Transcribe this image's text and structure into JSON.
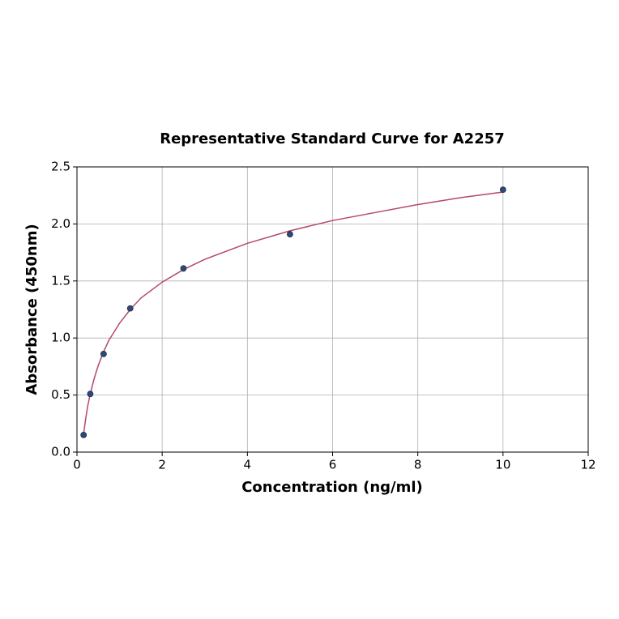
{
  "chart_data": {
    "type": "scatter",
    "title": "Representative Standard Curve for A2257",
    "x_label": "Concentration (ng/ml)",
    "y_label": "Absorbance (450nm)",
    "series": [
      {
        "mode": "line",
        "color": "#b5476a",
        "x": [
          0.156,
          0.2,
          0.25,
          0.3,
          0.4,
          0.5,
          0.625,
          0.75,
          1,
          1.25,
          1.5,
          2,
          2.5,
          3,
          4,
          5,
          6,
          7,
          8,
          9,
          10
        ],
        "values": [
          0.16,
          0.28,
          0.4,
          0.49,
          0.64,
          0.76,
          0.88,
          0.98,
          1.13,
          1.25,
          1.35,
          1.49,
          1.6,
          1.69,
          1.83,
          1.94,
          2.03,
          2.1,
          2.17,
          2.23,
          2.28
        ]
      },
      {
        "mode": "markers",
        "color": "#2e4a7a",
        "x": [
          0.156,
          0.312,
          0.625,
          1.25,
          2.5,
          5,
          10
        ],
        "values": [
          0.15,
          0.51,
          0.86,
          1.26,
          1.61,
          1.91,
          2.3
        ]
      }
    ],
    "xlim": [
      0,
      12
    ],
    "xticks": [
      0,
      2,
      4,
      6,
      8,
      10,
      12
    ],
    "ylim": [
      0,
      2.5
    ],
    "yticks": [
      {
        "value": 0,
        "label": "0.0"
      },
      0.5,
      {
        "value": 1,
        "label": "1.0"
      },
      1.5,
      {
        "value": 2,
        "label": "2.0"
      },
      2.5
    ],
    "grid": true
  }
}
